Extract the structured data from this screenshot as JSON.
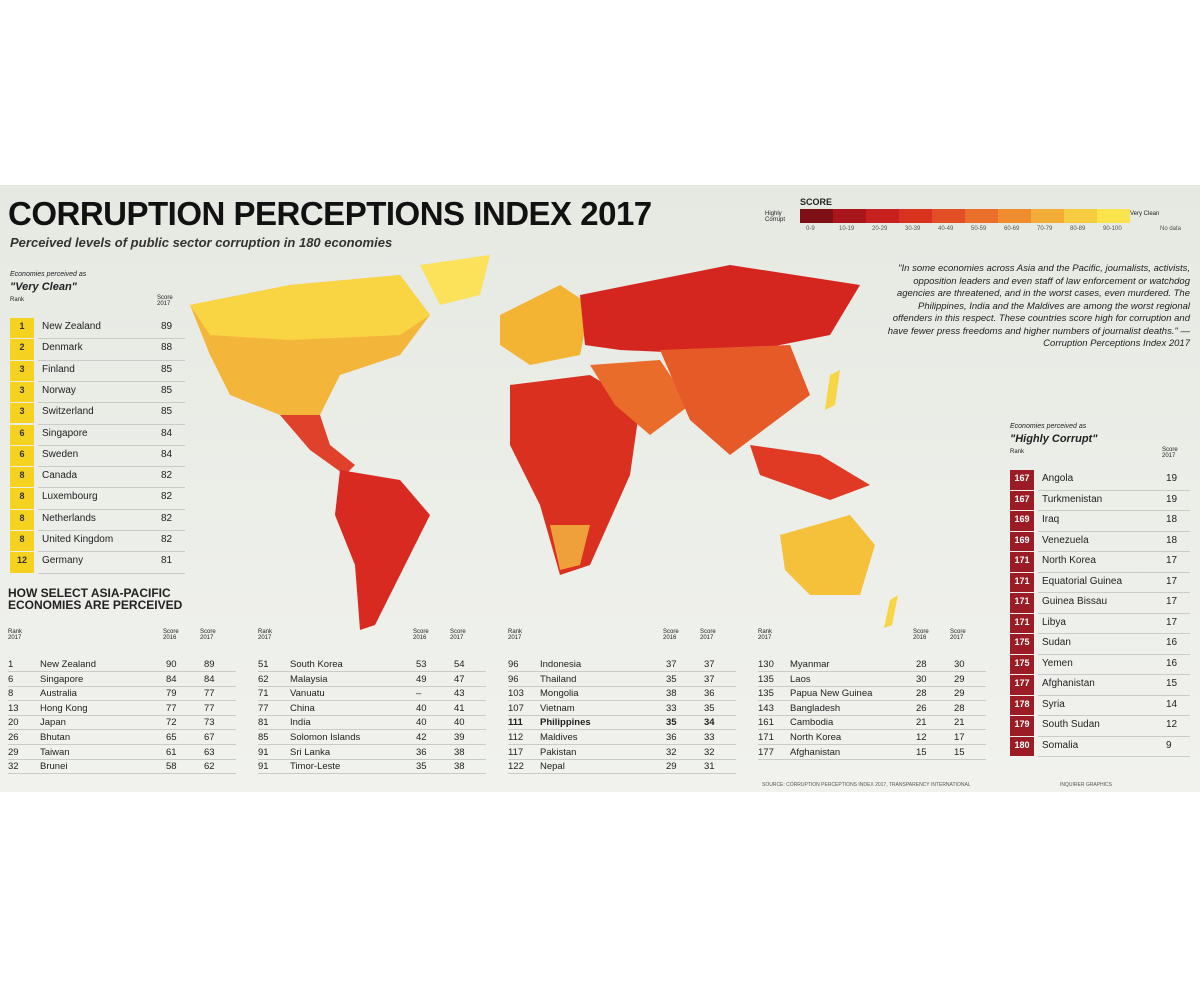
{
  "header": {
    "title": "CORRUPTION PERCEPTIONS INDEX 2017",
    "subtitle": "Perceived levels of public sector corruption in 180 economies"
  },
  "legend": {
    "title": "SCORE",
    "low": "Highly Corrupt",
    "high": "Very Clean",
    "ranges": [
      "0-9",
      "10-19",
      "20-29",
      "30-39",
      "40-49",
      "50-59",
      "60-69",
      "70-79",
      "80-89",
      "90-100"
    ],
    "no_data": "No data"
  },
  "quote": "\"In some economies across Asia and the Pacific, journalists, activists, opposition leaders and even staff of law enforcement or watchdog agencies are threatened, and in the worst cases, even murdered. The Philippines, India and the Maldives are among the worst regional offenders in this respect. These countries score high for corruption and have fewer press freedoms and higher numbers of journalist deaths.\" — Corruption Perceptions Index 2017",
  "very_clean": {
    "caption": "Economies perceived as",
    "label": "\"Very Clean\"",
    "columns": [
      "Rank",
      "Score 2017"
    ],
    "rows": [
      [
        "1",
        "New Zealand",
        "89"
      ],
      [
        "2",
        "Denmark",
        "88"
      ],
      [
        "3",
        "Finland",
        "85"
      ],
      [
        "3",
        "Norway",
        "85"
      ],
      [
        "3",
        "Switzerland",
        "85"
      ],
      [
        "6",
        "Singapore",
        "84"
      ],
      [
        "6",
        "Sweden",
        "84"
      ],
      [
        "8",
        "Canada",
        "82"
      ],
      [
        "8",
        "Luxembourg",
        "82"
      ],
      [
        "8",
        "Netherlands",
        "82"
      ],
      [
        "8",
        "United Kingdom",
        "82"
      ],
      [
        "12",
        "Germany",
        "81"
      ]
    ]
  },
  "highly_corrupt": {
    "caption": "Economies perceived as",
    "label": "\"Highly Corrupt\"",
    "columns": [
      "Rank",
      "Score 2017"
    ],
    "rows": [
      [
        "167",
        "Angola",
        "19"
      ],
      [
        "167",
        "Turkmenistan",
        "19"
      ],
      [
        "169",
        "Iraq",
        "18"
      ],
      [
        "169",
        "Venezuela",
        "18"
      ],
      [
        "171",
        "North Korea",
        "17"
      ],
      [
        "171",
        "Equatorial Guinea",
        "17"
      ],
      [
        "171",
        "Guinea Bissau",
        "17"
      ],
      [
        "171",
        "Libya",
        "17"
      ],
      [
        "175",
        "Sudan",
        "16"
      ],
      [
        "175",
        "Yemen",
        "16"
      ],
      [
        "177",
        "Afghanistan",
        "15"
      ],
      [
        "178",
        "Syria",
        "14"
      ],
      [
        "179",
        "South Sudan",
        "12"
      ],
      [
        "180",
        "Somalia",
        "9"
      ]
    ]
  },
  "asia_pacific": {
    "title": "HOW SELECT ASIA-PACIFIC ECONOMIES ARE PERCEIVED",
    "columns": [
      "Rank 2017",
      "Score 2016",
      "Score 2017"
    ],
    "tables": [
      [
        [
          "1",
          "New Zealand",
          "90",
          "89"
        ],
        [
          "6",
          "Singapore",
          "84",
          "84"
        ],
        [
          "8",
          "Australia",
          "79",
          "77"
        ],
        [
          "13",
          "Hong Kong",
          "77",
          "77"
        ],
        [
          "20",
          "Japan",
          "72",
          "73"
        ],
        [
          "26",
          "Bhutan",
          "65",
          "67"
        ],
        [
          "29",
          "Taiwan",
          "61",
          "63"
        ],
        [
          "32",
          "Brunei",
          "58",
          "62"
        ]
      ],
      [
        [
          "51",
          "South Korea",
          "53",
          "54"
        ],
        [
          "62",
          "Malaysia",
          "49",
          "47"
        ],
        [
          "71",
          "Vanuatu",
          "–",
          "43"
        ],
        [
          "77",
          "China",
          "40",
          "41"
        ],
        [
          "81",
          "India",
          "40",
          "40"
        ],
        [
          "85",
          "Solomon Islands",
          "42",
          "39"
        ],
        [
          "91",
          "Sri Lanka",
          "36",
          "38"
        ],
        [
          "91",
          "Timor-Leste",
          "35",
          "38"
        ]
      ],
      [
        [
          "96",
          "Indonesia",
          "37",
          "37"
        ],
        [
          "96",
          "Thailand",
          "35",
          "37"
        ],
        [
          "103",
          "Mongolia",
          "38",
          "36"
        ],
        [
          "107",
          "Vietnam",
          "33",
          "35"
        ],
        [
          "111",
          "Philippines",
          "35",
          "34"
        ],
        [
          "112",
          "Maldives",
          "36",
          "33"
        ],
        [
          "117",
          "Pakistan",
          "32",
          "32"
        ],
        [
          "122",
          "Nepal",
          "29",
          "31"
        ]
      ],
      [
        [
          "130",
          "Myanmar",
          "28",
          "30"
        ],
        [
          "135",
          "Laos",
          "30",
          "29"
        ],
        [
          "135",
          "Papua New Guinea",
          "28",
          "29"
        ],
        [
          "143",
          "Bangladesh",
          "26",
          "28"
        ],
        [
          "161",
          "Cambodia",
          "21",
          "21"
        ],
        [
          "171",
          "North Korea",
          "12",
          "17"
        ],
        [
          "177",
          "Afghanistan",
          "15",
          "15"
        ]
      ]
    ]
  },
  "source": "SOURCE: CORRUPTION PERCEPTIONS INDEX 2017, TRANSPARENCY INTERNATIONAL",
  "credit": "INQUIRER GRAPHICS"
}
